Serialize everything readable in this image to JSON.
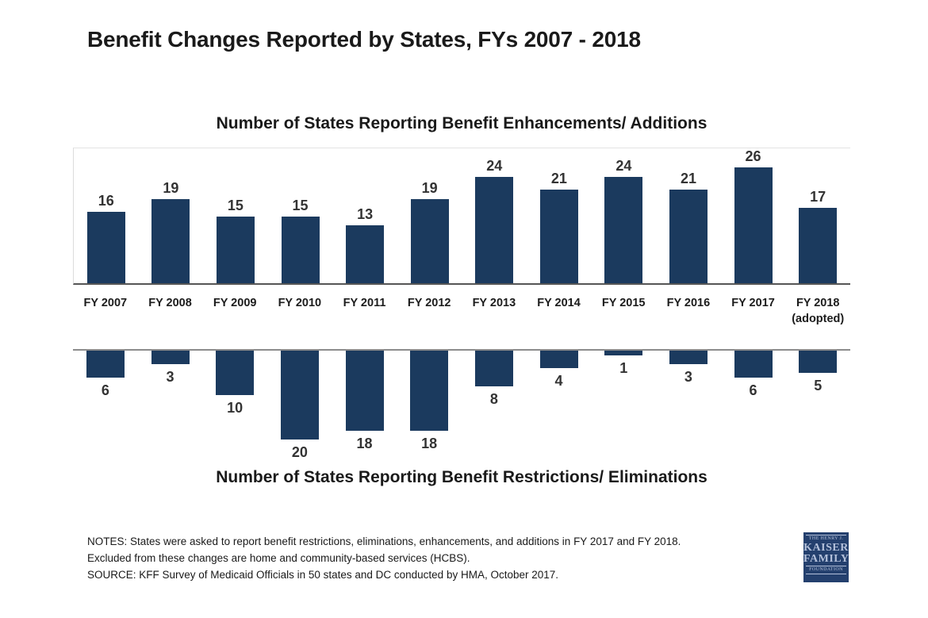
{
  "title": "Benefit Changes Reported by States, FYs 2007 - 2018",
  "chart_data": {
    "type": "bar",
    "categories": [
      "FY 2007",
      "FY 2008",
      "FY 2009",
      "FY 2010",
      "FY 2011",
      "FY 2012",
      "FY 2013",
      "FY 2014",
      "FY 2015",
      "FY 2016",
      "FY 2017",
      "FY 2018"
    ],
    "last_category_note": "(adopted)",
    "series": [
      {
        "name": "Number of States Reporting Benefit Enhancements/ Additions",
        "direction": "up",
        "values": [
          16,
          19,
          15,
          15,
          13,
          19,
          24,
          21,
          24,
          21,
          26,
          17
        ]
      },
      {
        "name": "Number of States Reporting Benefit Restrictions/ Eliminations",
        "direction": "down",
        "values": [
          6,
          3,
          10,
          20,
          18,
          18,
          8,
          4,
          1,
          3,
          6,
          5
        ]
      }
    ],
    "value_labels_shown": true,
    "legend": "none",
    "gridlines": false,
    "bar_color": "#1b3a5e",
    "baseline_color": "#565656",
    "zero_line_color": "#8c8c8c"
  },
  "notes": [
    "NOTES: States were asked to report benefit restrictions, eliminations, enhancements, and additions in FY 2017 and FY 2018.",
    "Excluded from these changes are home and community-based services (HCBS).",
    "SOURCE: KFF Survey of Medicaid Officials in 50 states and DC conducted by HMA, October 2017."
  ],
  "logo": {
    "line1": "THE HENRY J.",
    "line2": "KAISER",
    "line3": "FAMILY",
    "line4": "FOUNDATION",
    "bg_color": "#24406e",
    "text_color": "#b3c0da"
  }
}
